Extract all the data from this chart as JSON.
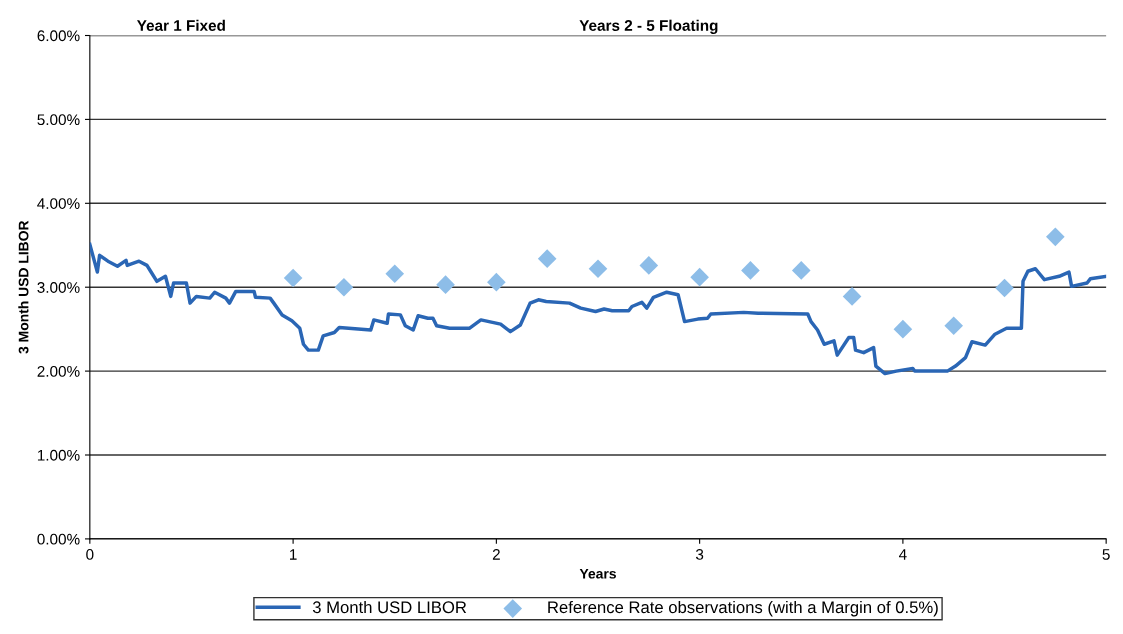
{
  "chart_data": {
    "type": "line",
    "xlabel": "Years",
    "ylabel": "3 Month USD LIBOR",
    "annotations": [
      "Year 1 Fixed",
      "Years 2 - 5 Floating"
    ],
    "xlim": [
      0,
      5
    ],
    "xticks": [
      0,
      1,
      2,
      3,
      4,
      5
    ],
    "ylim": [
      0,
      6
    ],
    "yticks": [
      {
        "value": 0,
        "label": "0.00%"
      },
      {
        "value": 1,
        "label": "1.00%"
      },
      {
        "value": 2,
        "label": "2.00%"
      },
      {
        "value": 3,
        "label": "3.00%"
      },
      {
        "value": 4,
        "label": "4.00%"
      },
      {
        "value": 5,
        "label": "5.00%"
      },
      {
        "value": 6,
        "label": "6.00%"
      }
    ],
    "grid": "y",
    "legend": "bottom",
    "series": [
      {
        "name": "3 Month USD LIBOR",
        "color": "#2a66b5",
        "marker": "none",
        "line_style": "solid",
        "x": [
          0,
          0.037,
          0.048,
          0.089,
          0.136,
          0.178,
          0.184,
          0.242,
          0.281,
          0.299,
          0.33,
          0.372,
          0.398,
          0.412,
          0.475,
          0.493,
          0.524,
          0.59,
          0.614,
          0.669,
          0.687,
          0.718,
          0.808,
          0.815,
          0.887,
          0.905,
          0.946,
          0.994,
          1.033,
          1.051,
          1.075,
          1.124,
          1.148,
          1.203,
          1.227,
          1.382,
          1.397,
          1.463,
          1.469,
          1.528,
          1.552,
          1.591,
          1.615,
          1.663,
          1.688,
          1.706,
          1.77,
          1.867,
          1.924,
          2.021,
          2.069,
          2.118,
          2.166,
          2.207,
          2.245,
          2.36,
          2.415,
          2.488,
          2.53,
          2.57,
          2.651,
          2.667,
          2.716,
          2.74,
          2.773,
          2.838,
          2.894,
          2.926,
          2.991,
          3.039,
          3.055,
          3.217,
          3.288,
          3.532,
          3.548,
          3.58,
          3.613,
          3.661,
          3.677,
          3.734,
          3.758,
          3.767,
          3.807,
          3.856,
          3.867,
          3.912,
          3.967,
          4.049,
          4.058,
          4.219,
          4.259,
          4.308,
          4.34,
          4.405,
          4.453,
          4.51,
          4.583,
          4.591,
          4.615,
          4.652,
          4.696,
          4.769,
          4.817,
          4.83,
          4.906,
          4.922,
          5.0
        ],
        "values": [
          3.51,
          3.18,
          3.38,
          3.31,
          3.25,
          3.32,
          3.26,
          3.31,
          3.26,
          3.19,
          3.07,
          3.13,
          2.89,
          3.05,
          3.05,
          2.81,
          2.89,
          2.87,
          2.94,
          2.87,
          2.81,
          2.95,
          2.95,
          2.88,
          2.87,
          2.81,
          2.67,
          2.6,
          2.51,
          2.32,
          2.25,
          2.25,
          2.42,
          2.46,
          2.52,
          2.49,
          2.61,
          2.57,
          2.68,
          2.67,
          2.54,
          2.49,
          2.66,
          2.63,
          2.63,
          2.54,
          2.51,
          2.51,
          2.61,
          2.56,
          2.47,
          2.55,
          2.81,
          2.85,
          2.83,
          2.81,
          2.75,
          2.71,
          2.74,
          2.72,
          2.72,
          2.77,
          2.82,
          2.75,
          2.88,
          2.94,
          2.91,
          2.59,
          2.62,
          2.63,
          2.68,
          2.7,
          2.69,
          2.68,
          2.59,
          2.49,
          2.32,
          2.36,
          2.19,
          2.4,
          2.4,
          2.25,
          2.22,
          2.28,
          2.06,
          1.97,
          2.0,
          2.03,
          2.0,
          2.0,
          2.06,
          2.16,
          2.35,
          2.31,
          2.44,
          2.51,
          2.51,
          3.07,
          3.19,
          3.22,
          3.09,
          3.13,
          3.18,
          3.01,
          3.05,
          3.1,
          3.13
        ]
      },
      {
        "name": "Reference Rate observations (with a Margin of 0.5%)",
        "type": "scatter",
        "color": "#8dbde8",
        "marker": "diamond",
        "x": [
          1,
          1.25,
          1.5,
          1.75,
          2,
          2.25,
          2.5,
          2.75,
          3,
          3.25,
          3.5,
          3.75,
          4,
          4.25,
          4.5,
          4.75
        ],
        "values": [
          3.11,
          3.0,
          3.16,
          3.03,
          3.06,
          3.34,
          3.22,
          3.26,
          3.12,
          3.2,
          3.2,
          2.89,
          2.5,
          2.54,
          2.99,
          3.6
        ]
      }
    ]
  }
}
